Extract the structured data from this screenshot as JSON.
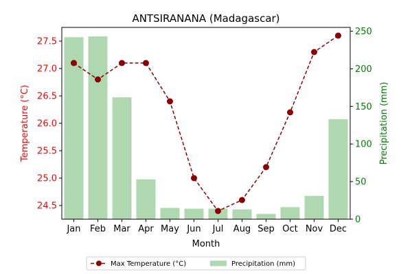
{
  "chart_data": {
    "type": "bar+line",
    "title": "ANTSIRANANA (Madagascar)",
    "xlabel": "Month",
    "categories": [
      "Jan",
      "Feb",
      "Mar",
      "Apr",
      "May",
      "Jun",
      "Jul",
      "Aug",
      "Sep",
      "Oct",
      "Nov",
      "Dec"
    ],
    "temperature": {
      "name": "Max Temperature (°C)",
      "axis_label": "Temperature (°C)",
      "color": "#8b0000",
      "axis_color": "#ff0000",
      "ylim": [
        24.25,
        27.75
      ],
      "ticks": [
        24.5,
        25.0,
        25.5,
        26.0,
        26.5,
        27.0,
        27.5
      ],
      "tick_labels": [
        "24.5",
        "25.0",
        "25.5",
        "26.0",
        "26.5",
        "27.0",
        "27.5"
      ],
      "values": [
        27.1,
        26.8,
        27.1,
        27.1,
        26.4,
        25.0,
        24.4,
        24.6,
        25.2,
        26.2,
        27.3,
        27.6
      ]
    },
    "precipitation": {
      "name": "Precipitation (mm)",
      "axis_label": "Precipitation (mm)",
      "color": "#b0d8b0",
      "axis_color": "#008000",
      "ylim": [
        0,
        255
      ],
      "ticks": [
        0,
        50,
        100,
        150,
        200,
        250
      ],
      "tick_labels": [
        "0",
        "50",
        "100",
        "150",
        "200",
        "250"
      ],
      "values": [
        242,
        243,
        162,
        53,
        15,
        14,
        14,
        13,
        7,
        16,
        31,
        133
      ]
    },
    "legend_position": "bottom-center"
  }
}
